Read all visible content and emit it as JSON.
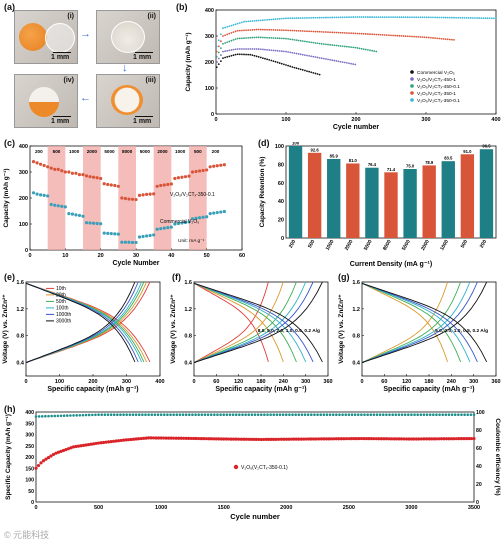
{
  "panel_a": {
    "label": "(a)",
    "photos": [
      {
        "tag": "(i)",
        "scale": "1 mm"
      },
      {
        "tag": "(ii)",
        "scale": "1 mm"
      },
      {
        "tag": "(iv)",
        "scale": "1 mm"
      },
      {
        "tag": "(iii)",
        "scale": "1 mm"
      }
    ]
  },
  "panel_b": {
    "label": "(b)"
  },
  "panel_c": {
    "label": "(c)"
  },
  "panel_d": {
    "label": "(d)"
  },
  "panel_e": {
    "label": "(e)"
  },
  "panel_f": {
    "label": "(f)"
  },
  "panel_g": {
    "label": "(g)"
  },
  "panel_h": {
    "label": "(h)"
  },
  "watermark": "© 元能科技",
  "chart_data": [
    {
      "id": "b",
      "type": "scatter",
      "xlabel": "Cycle number",
      "ylabel": "Capacity (mAh g⁻¹)",
      "xlim": [
        0,
        400
      ],
      "ylim": [
        0,
        400
      ],
      "xticks": [
        0,
        100,
        200,
        300,
        400
      ],
      "yticks": [
        0,
        100,
        200,
        300,
        400
      ],
      "legend_position": "bottom-right",
      "series": [
        {
          "name": "Commercial V₂O₅",
          "color": "#111111",
          "points": [
            [
              1,
              180
            ],
            [
              10,
              215
            ],
            [
              30,
              230
            ],
            [
              50,
              228
            ],
            [
              80,
              205
            ],
            [
              110,
              180
            ],
            [
              150,
              150
            ]
          ]
        },
        {
          "name": "V₂O₅/V₂CTₓ-450-1",
          "color": "#7b6fc4",
          "points": [
            [
              1,
              200
            ],
            [
              10,
              240
            ],
            [
              30,
              250
            ],
            [
              60,
              250
            ],
            [
              100,
              240
            ],
            [
              150,
              215
            ],
            [
              200,
              190
            ]
          ]
        },
        {
          "name": "V₂O₅/V₂CTₓ-450-0.1",
          "color": "#2fa37a",
          "points": [
            [
              1,
              220
            ],
            [
              10,
              270
            ],
            [
              30,
              290
            ],
            [
              60,
              295
            ],
            [
              100,
              290
            ],
            [
              150,
              270
            ],
            [
              200,
              255
            ],
            [
              230,
              240
            ]
          ]
        },
        {
          "name": "V₂O₅/V₂CTₓ-350-1",
          "color": "#d9553a",
          "points": [
            [
              1,
              240
            ],
            [
              10,
              300
            ],
            [
              30,
              320
            ],
            [
              60,
              325
            ],
            [
              100,
              322
            ],
            [
              200,
              310
            ],
            [
              300,
              295
            ],
            [
              340,
              285
            ]
          ]
        },
        {
          "name": "V₂O₅/V₂CTₓ-350-0.1",
          "color": "#39b7d6",
          "points": [
            [
              1,
              260
            ],
            [
              10,
              330
            ],
            [
              40,
              355
            ],
            [
              100,
              368
            ],
            [
              200,
              373
            ],
            [
              300,
              372
            ],
            [
              400,
              368
            ]
          ]
        }
      ]
    },
    {
      "id": "c",
      "type": "scatter",
      "xlabel": "Cycle Number",
      "ylabel": "Capacity (mAh g⁻¹)",
      "xlim": [
        0,
        60
      ],
      "ylim": [
        0,
        400
      ],
      "xticks": [
        0,
        10,
        20,
        30,
        40,
        50,
        60
      ],
      "yticks": [
        0,
        100,
        200,
        300,
        400
      ],
      "segments": [
        "200",
        "500",
        "1000",
        "2000",
        "5000",
        "8000",
        "5000",
        "2000",
        "1000",
        "500",
        "200"
      ],
      "unit_note": "Unit: mA g⁻¹",
      "series": [
        {
          "name": "V₂O₅/V₂CTₓ-350-0.1",
          "color": "#d9553a",
          "values": [
            340,
            335,
            330,
            325,
            320,
            315,
            310,
            310,
            305,
            300,
            300,
            295,
            295,
            290,
            290,
            285,
            282,
            280,
            278,
            275,
            255,
            252,
            250,
            248,
            245,
            200,
            198,
            196,
            195,
            194,
            210,
            212,
            214,
            215,
            216,
            245,
            248,
            250,
            252,
            254,
            275,
            278,
            280,
            282,
            284,
            300,
            302,
            304,
            306,
            308,
            320,
            322,
            324,
            326,
            328
          ]
        },
        {
          "name": "Commercial V₂O₅",
          "color": "#3a9fb8",
          "values": [
            220,
            215,
            212,
            210,
            208,
            175,
            172,
            170,
            168,
            166,
            140,
            138,
            135,
            133,
            130,
            105,
            104,
            103,
            102,
            101,
            65,
            64,
            63,
            62,
            61,
            30,
            30,
            30,
            29,
            29,
            50,
            52,
            54,
            56,
            58,
            80,
            82,
            84,
            86,
            88,
            100,
            102,
            104,
            106,
            108,
            120,
            122,
            124,
            126,
            128,
            140,
            142,
            144,
            146,
            148
          ]
        }
      ]
    },
    {
      "id": "d",
      "type": "bar",
      "xlabel": "Current Density (mA g⁻¹)",
      "ylabel": "Capacity Retention (%)",
      "ylim": [
        0,
        100
      ],
      "yticks": [
        0,
        20,
        40,
        60,
        80,
        100
      ],
      "categories": [
        "200",
        "500",
        "1000",
        "2000",
        "5000",
        "8000",
        "5000",
        "2000",
        "1000",
        "500",
        "200"
      ],
      "values": [
        100,
        92.6,
        85.9,
        81.0,
        76.4,
        71.4,
        75.0,
        78.9,
        83.5,
        91.0,
        96.5
      ],
      "colors": [
        "#1f7f86",
        "#d9553a",
        "#1f7f86",
        "#d9553a",
        "#1f7f86",
        "#d9553a",
        "#1f7f86",
        "#d9553a",
        "#1f7f86",
        "#d9553a",
        "#1f7f86"
      ]
    },
    {
      "id": "e",
      "type": "line",
      "xlabel": "Specific capacity (mAh g⁻¹)",
      "ylabel": "Voltage (V) vs. Zn/Zn²⁺",
      "xlim": [
        0,
        400
      ],
      "ylim": [
        0.2,
        1.6
      ],
      "xticks": [
        0,
        100,
        200,
        300,
        400
      ],
      "yticks": [
        0.4,
        0.8,
        1.2,
        1.6
      ],
      "series": [
        {
          "name": "10th",
          "color": "#e23b3b",
          "capacity": 370
        },
        {
          "name": "20th",
          "color": "#d99a2b",
          "capacity": 360
        },
        {
          "name": "50th",
          "color": "#3cae52",
          "capacity": 352
        },
        {
          "name": "100th",
          "color": "#2fb3c9",
          "capacity": 345
        },
        {
          "name": "1000th",
          "color": "#3756c8",
          "capacity": 335
        },
        {
          "name": "3000th",
          "color": "#111111",
          "capacity": 325
        }
      ]
    },
    {
      "id": "f",
      "type": "line",
      "xlabel": "Specific capacity (mAh g⁻¹)",
      "ylabel": "Voltage (V) vs. Zn/Zn²⁺",
      "xlim": [
        0,
        360
      ],
      "ylim": [
        0.2,
        1.6
      ],
      "xticks": [
        0,
        60,
        120,
        180,
        240,
        300,
        360
      ],
      "yticks": [
        0.4,
        0.8,
        1.2,
        1.6
      ],
      "annotation": "8.0, 5.0, 2.0, 1.0, 0.5, 0.2 A/g",
      "series": [
        {
          "name": "8.0",
          "color": "#e23b3b",
          "capacity": 200
        },
        {
          "name": "5.0",
          "color": "#d99a2b",
          "capacity": 240
        },
        {
          "name": "2.0",
          "color": "#3cae52",
          "capacity": 275
        },
        {
          "name": "1.0",
          "color": "#2fb3c9",
          "capacity": 300
        },
        {
          "name": "0.5",
          "color": "#3756c8",
          "capacity": 320
        },
        {
          "name": "0.2",
          "color": "#111111",
          "capacity": 345
        }
      ]
    },
    {
      "id": "g",
      "type": "line",
      "xlabel": "Specific capacity (mAh g⁻¹)",
      "ylabel": "Voltage (V) vs. Zn/Zn²⁺",
      "xlim": [
        0,
        360
      ],
      "ylim": [
        0.2,
        1.6
      ],
      "xticks": [
        0,
        60,
        120,
        180,
        240,
        300,
        360
      ],
      "yticks": [
        0.4,
        0.8,
        1.2,
        1.6
      ],
      "annotation": "5.0, 2.0, 1.0, 0.5, 0.2 A/g",
      "series": [
        {
          "name": "5.0",
          "color": "#d99a2b",
          "capacity": 230
        },
        {
          "name": "2.0",
          "color": "#3cae52",
          "capacity": 265
        },
        {
          "name": "1.0",
          "color": "#2fb3c9",
          "capacity": 290
        },
        {
          "name": "0.5",
          "color": "#3756c8",
          "capacity": 310
        },
        {
          "name": "0.2",
          "color": "#111111",
          "capacity": 335
        }
      ]
    },
    {
      "id": "h",
      "type": "scatter",
      "xlabel": "Cycle number",
      "ylabel": "Specific Capacity (mAh g⁻¹)",
      "y2label": "Coulombic efficiency (%)",
      "xlim": [
        0,
        3500
      ],
      "ylim": [
        0,
        400
      ],
      "y2lim": [
        0,
        100
      ],
      "xticks": [
        0,
        500,
        1000,
        1500,
        2000,
        2500,
        3000,
        3500
      ],
      "yticks": [
        0,
        50,
        100,
        150,
        200,
        250,
        300,
        350,
        400
      ],
      "y2ticks": [
        0,
        20,
        40,
        60,
        80,
        100
      ],
      "series": [
        {
          "name": "V₂O₅(V₂CTₓ-350-0.1)",
          "color": "#d9252a",
          "axis": "left",
          "points": [
            [
              0,
              150
            ],
            [
              50,
              180
            ],
            [
              150,
              215
            ],
            [
              300,
              245
            ],
            [
              500,
              262
            ],
            [
              700,
              275
            ],
            [
              900,
              285
            ],
            [
              1200,
              283
            ],
            [
              1500,
              280
            ],
            [
              1800,
              278
            ],
            [
              2200,
              280
            ],
            [
              2600,
              282
            ],
            [
              3000,
              280
            ],
            [
              3500,
              282
            ]
          ]
        },
        {
          "name": "Coulombic efficiency",
          "color": "#1f8f8c",
          "axis": "right",
          "points": [
            [
              0,
              95
            ],
            [
              500,
              97
            ],
            [
              1000,
              97
            ],
            [
              1500,
              97
            ],
            [
              2000,
              97
            ],
            [
              2500,
              97
            ],
            [
              3000,
              97
            ],
            [
              3500,
              97
            ]
          ]
        }
      ]
    }
  ]
}
